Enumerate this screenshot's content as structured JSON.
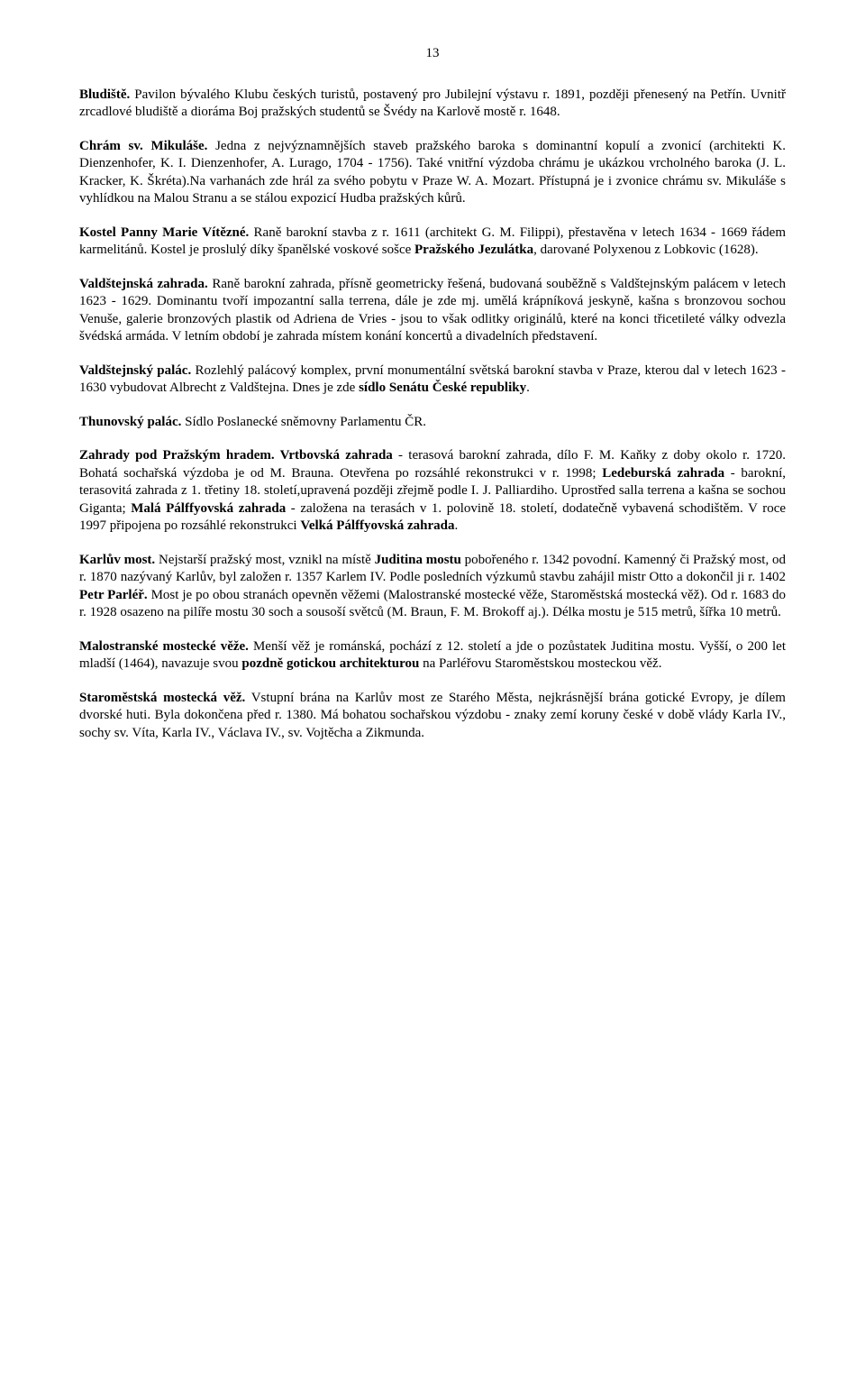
{
  "pageNumber": "13",
  "paragraphs": [
    {
      "segments": [
        {
          "text": "Bludiště.",
          "bold": true
        },
        {
          "text": " Pavilon bývalého Klubu českých turistů, postavený pro Jubilejní výstavu r. 1891, později přenesený na Petřín. Uvnitř zrcadlové bludiště a dioráma Boj pražských studentů se Švédy na Karlově mostě r. 1648.",
          "bold": false
        }
      ]
    },
    {
      "segments": [
        {
          "text": "Chrám sv. Mikuláše.",
          "bold": true
        },
        {
          "text": " Jedna z nejvýznamnějších staveb pražského baroka s dominantní kopulí a zvonicí (architekti K. Dienzenhofer, K. I. Dienzenhofer, A. Lurago, 1704 - 1756). Také vnitřní výzdoba chrámu je ukázkou vrcholného baroka (J. L. Kracker, K. Škréta).Na varhanách zde hrál za svého pobytu v Praze W. A. Mozart. Přístupná je i zvonice chrámu sv. Mikuláše s vyhlídkou na Malou Stranu a se stálou expozicí Hudba pražských kůrů.",
          "bold": false
        }
      ]
    },
    {
      "segments": [
        {
          "text": "Kostel Panny Marie Vítězné.",
          "bold": true
        },
        {
          "text": " Raně barokní stavba z r. 1611 (architekt G. M. Filippi), přestavěna v letech 1634 - 1669 řádem karmelitánů. Kostel je proslulý díky španělské voskové sošce ",
          "bold": false
        },
        {
          "text": "Pražského Jezulátka",
          "bold": true
        },
        {
          "text": ", darované Polyxenou z Lobkovic (1628).",
          "bold": false
        }
      ]
    },
    {
      "segments": [
        {
          "text": "Valdštejnská zahrada.",
          "bold": true
        },
        {
          "text": " Raně barokní zahrada, přísně geometricky řešená, budovaná souběžně s Valdštejnským palácem v letech 1623 - 1629. Dominantu tvoří impozantní salla terrena, dále je zde mj. umělá krápníková jeskyně, kašna s bronzovou sochou Venuše, galerie bronzových plastik od Adriena de Vries - jsou to však odlitky originálů, které na konci třicetileté války odvezla švédská armáda. V letním období je zahrada místem konání koncertů a divadelních představení.",
          "bold": false
        }
      ]
    },
    {
      "segments": [
        {
          "text": "Valdštejnský palác.",
          "bold": true
        },
        {
          "text": " Rozlehlý palácový komplex, první monumentální světská barokní stavba v Praze, kterou dal v letech 1623 - 1630 vybudovat Albrecht z Valdštejna. Dnes je zde ",
          "bold": false
        },
        {
          "text": "sídlo Senátu České republiky",
          "bold": true
        },
        {
          "text": ".",
          "bold": false
        }
      ]
    },
    {
      "segments": [
        {
          "text": "Thunovský palác.",
          "bold": true
        },
        {
          "text": " Sídlo Poslanecké sněmovny Parlamentu ČR.",
          "bold": false
        }
      ]
    },
    {
      "segments": [
        {
          "text": "Zahrady pod Pražským hradem. Vrtbovská zahrada",
          "bold": true
        },
        {
          "text": " - terasová barokní zahrada, dílo F. M. Kaňky z doby okolo r. 1720. Bohatá sochařská výzdoba je od M. Brauna. Otevřena po rozsáhlé rekonstrukci v r. 1998; ",
          "bold": false
        },
        {
          "text": "Ledeburská zahrada",
          "bold": true
        },
        {
          "text": " - barokní, terasovitá zahrada z 1. třetiny 18. století,upravená později zřejmě podle I. J. Palliardiho. Uprostřed salla terrena a kašna se sochou Giganta; ",
          "bold": false
        },
        {
          "text": "Malá Pálffyovská zahrada",
          "bold": true
        },
        {
          "text": " - založena na terasách v 1. polovině 18. století, dodatečně vybavená schodištěm. V roce 1997 připojena po rozsáhlé rekonstrukci ",
          "bold": false
        },
        {
          "text": "Velká Pálffyovská zahrada",
          "bold": true
        },
        {
          "text": ".",
          "bold": false
        }
      ]
    },
    {
      "segments": [
        {
          "text": "Karlův most.",
          "bold": true
        },
        {
          "text": " Nejstarší pražský most, vznikl na místě ",
          "bold": false
        },
        {
          "text": "Juditina mostu",
          "bold": true
        },
        {
          "text": " pobořeného r. 1342 povodní. Kamenný či Pražský most, od r. 1870 nazývaný Karlův, byl založen r. 1357 Karlem IV. Podle posledních výzkumů stavbu zahájil mistr Otto a dokončil ji r. 1402 ",
          "bold": false
        },
        {
          "text": "Petr Parléř.",
          "bold": true
        },
        {
          "text": " Most je po obou stranách opevněn věžemi (Malostranské mostecké věže, Staroměstská mostecká věž). Od r. 1683 do r. 1928 osazeno na pilíře mostu 30 soch a sousoší světců (M. Braun, F. M. Brokoff aj.). Délka mostu je 515 metrů, šířka 10 metrů.",
          "bold": false
        }
      ]
    },
    {
      "segments": [
        {
          "text": "Malostranské mostecké věže.",
          "bold": true
        },
        {
          "text": " Menší věž je románská, pochází z 12. století a jde o pozůstatek Juditina mostu. Vyšší, o 200 let mladší (1464), navazuje svou ",
          "bold": false
        },
        {
          "text": "pozdně gotickou architekturou",
          "bold": true
        },
        {
          "text": " na Parléřovu Staroměstskou mosteckou věž.",
          "bold": false
        }
      ]
    },
    {
      "segments": [
        {
          "text": "Staroměstská mostecká věž.",
          "bold": true
        },
        {
          "text": " Vstupní brána na Karlův most ze Starého Města, nejkrásnější brána gotické Evropy, je dílem dvorské huti. Byla dokončena před r. 1380. Má bohatou sochařskou výzdobu - znaky zemí koruny české v době vlády Karla IV., sochy sv. Víta, Karla IV., Václava IV., sv. Vojtěcha a Zikmunda.",
          "bold": false
        }
      ]
    }
  ]
}
